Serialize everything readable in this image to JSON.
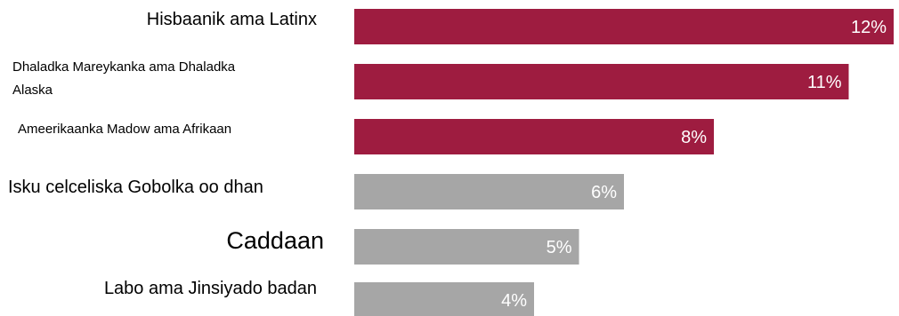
{
  "chart_data": {
    "type": "bar",
    "orientation": "horizontal",
    "categories": [
      "Hisbaanik ama Latinx",
      "Dhaladka Mareykanka ama Dhaladka Alaska",
      "Ameerikaanka Madow ama Afrikaan",
      "Isku celceliska Gobolka oo dhan",
      "Caddaan",
      "Labo ama Jinsiyado badan"
    ],
    "values": [
      12,
      11,
      8,
      6,
      5,
      4
    ],
    "value_labels": [
      "12%",
      "11%",
      "8%",
      "6%",
      "5%",
      "4%"
    ],
    "bar_colors": [
      "#9e1c40",
      "#9e1c40",
      "#9e1c40",
      "#a6a6a6",
      "#a6a6a6",
      "#a6a6a6"
    ],
    "value_label_color": "#ffffff",
    "title": "",
    "xlabel": "",
    "ylabel": "",
    "grid": false,
    "legend": "none"
  }
}
